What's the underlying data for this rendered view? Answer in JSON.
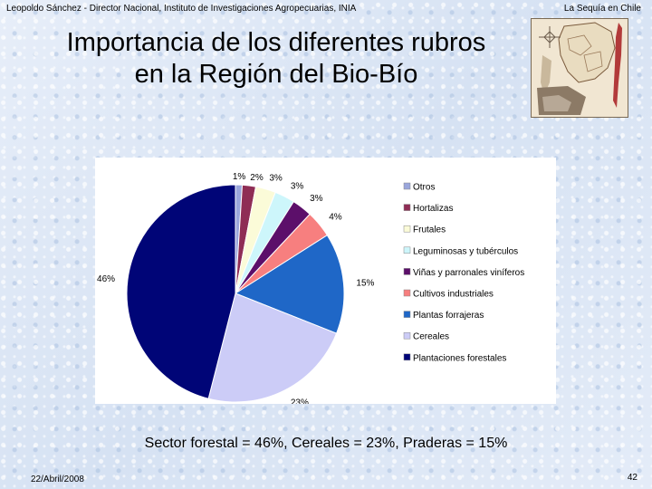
{
  "header": {
    "left": "Leopoldo Sánchez - Director Nacional, Instituto de Investigaciones Agropecuarias, INIA",
    "right": "La Sequía en Chile"
  },
  "title": {
    "line1": "Importancia de los diferentes rubros",
    "line2": "en la Región del Bio-Bío"
  },
  "chart_data": {
    "type": "pie",
    "title": "",
    "categories": [
      "Otros",
      "Hortalizas",
      "Frutales",
      "Leguminosas y tubérculos",
      "Viñas y parronales viníferos",
      "Cultivos industriales",
      "Plantas forrajeras",
      "Cereales",
      "Plantaciones forestales"
    ],
    "values": [
      1,
      2,
      3,
      3,
      3,
      4,
      15,
      23,
      46
    ],
    "labels": [
      "1%",
      "2%",
      "3%",
      "3%",
      "3%",
      "4%",
      "15%",
      "23%",
      "46%"
    ],
    "colors": [
      "#9aa6dc",
      "#8f2d55",
      "#fbfbd8",
      "#cdf6fb",
      "#5c0f6a",
      "#f77f7f",
      "#1f67c7",
      "#ccccf7",
      "#000577"
    ],
    "legend_position": "right"
  },
  "caption": "Sector forestal = 46%, Cereales = 23%, Praderas = 15%",
  "footer": {
    "date": "22/Abril/2008",
    "page": "42"
  }
}
